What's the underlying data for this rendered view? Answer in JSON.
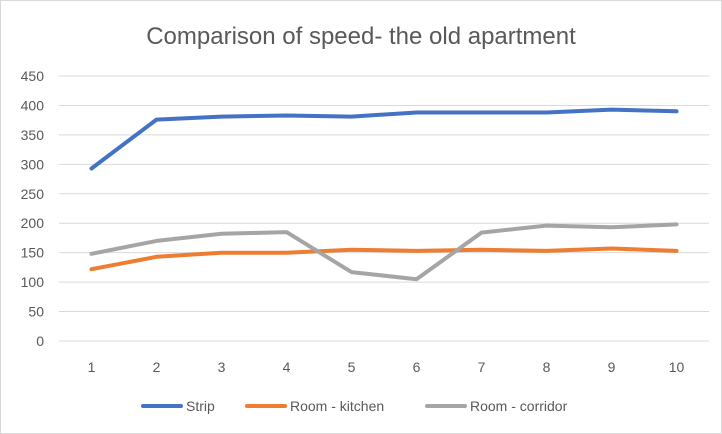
{
  "chart_data": {
    "type": "line",
    "title": "Comparison of speed- the old apartment",
    "xlabel": "",
    "ylabel": "",
    "x": [
      1,
      2,
      3,
      4,
      5,
      6,
      7,
      8,
      9,
      10
    ],
    "ylim": [
      0,
      450
    ],
    "yticks": [
      0,
      50,
      100,
      150,
      200,
      250,
      300,
      350,
      400,
      450
    ],
    "grid": true,
    "legend": "bottom",
    "series": [
      {
        "name": "Strip",
        "color": "#4472c4",
        "values": [
          293,
          376,
          381,
          383,
          381,
          388,
          388,
          388,
          393,
          390
        ]
      },
      {
        "name": "Room - kitchen",
        "color": "#ed7d31",
        "values": [
          122,
          143,
          150,
          150,
          155,
          153,
          155,
          153,
          157,
          153
        ]
      },
      {
        "name": "Room - corridor",
        "color": "#a5a5a5",
        "values": [
          148,
          170,
          182,
          185,
          117,
          105,
          184,
          196,
          193,
          198
        ]
      }
    ]
  }
}
